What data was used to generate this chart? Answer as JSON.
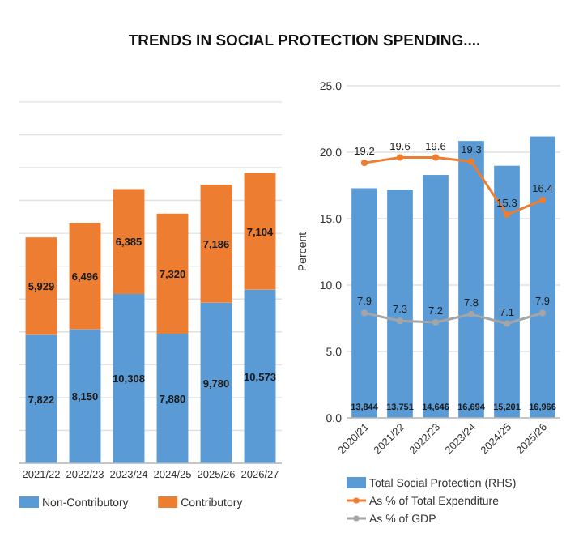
{
  "chart_data": [
    {
      "type": "bar",
      "stacked": true,
      "categories": [
        "2021/22",
        "2022/23",
        "2023/24",
        "2024/25",
        "2025/26",
        "2026/27"
      ],
      "series": [
        {
          "name": "Non-Contributory",
          "color": "#5b9bd5",
          "values": [
            7822,
            8150,
            10308,
            7880,
            9780,
            10573
          ],
          "value_labels": [
            "7,822",
            "8,150",
            "10,308",
            "7,880",
            "9,780",
            "10,573"
          ]
        },
        {
          "name": "Contributory",
          "color": "#ed7d31",
          "values": [
            5929,
            6496,
            6385,
            7320,
            7186,
            7104
          ],
          "value_labels": [
            "5,929",
            "6,496",
            "6,385",
            "7,320",
            "7,186",
            "7,104"
          ]
        }
      ],
      "tick_labels": "x",
      "grid": "y",
      "legend": "bottom"
    },
    {
      "type": "bar",
      "title": "TRENDS IN SOCIAL PROTECTION SPENDING....",
      "ylabel": "Percent",
      "categories": [
        "2020/21",
        "2021/22",
        "2022/23",
        "2023/24",
        "2024/25",
        "2025/26"
      ],
      "series": [
        {
          "name": "Total Social Protection (RHS)",
          "color": "#5b9bd5",
          "axis": "y2",
          "values": [
            13844,
            13751,
            14646,
            16694,
            15201,
            16966
          ],
          "value_labels": [
            "13,844",
            "13,751",
            "14,646",
            "16,694",
            "15,201",
            "16,966"
          ]
        },
        {
          "name": "As % of Total Expenditure",
          "type": "line",
          "color": "#ed7d31",
          "values": [
            19.2,
            19.6,
            19.6,
            19.3,
            15.3,
            16.4
          ]
        },
        {
          "name": "As % of GDP",
          "type": "line",
          "color": "#a5a5a5",
          "values": [
            7.9,
            7.3,
            7.2,
            7.8,
            7.1,
            7.9
          ]
        }
      ],
      "ylim": [
        0,
        25
      ],
      "yticks": [
        {
          "value": 0,
          "label": "0.0"
        },
        {
          "value": 5,
          "label": "5.0"
        },
        {
          "value": 10,
          "label": "10.0"
        },
        {
          "value": 15,
          "label": "15.0"
        },
        {
          "value": 20,
          "label": "20.0"
        },
        {
          "value": 25,
          "label": "25.0"
        }
      ],
      "grid": "y",
      "data_labels": true,
      "legend": "bottom",
      "marker": "circle"
    }
  ]
}
